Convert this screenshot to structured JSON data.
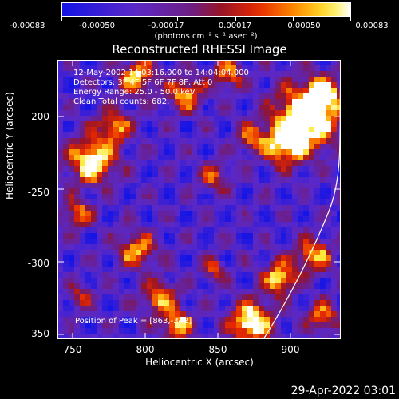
{
  "colorbar": {
    "labels": [
      "-0.00083",
      "-0.00050",
      "-0.00017",
      "0.00017",
      "0.00050",
      "0.00083"
    ],
    "units": "(photons cm⁻² s⁻¹ asec⁻²)",
    "range": [
      -0.00083,
      0.00083
    ]
  },
  "chart_data": {
    "type": "heatmap",
    "title": "Reconstructed RHESSI Image",
    "xlabel": "Heliocentric X (arcsec)",
    "ylabel": "Heliocentric Y (arcsec)",
    "xlim": [
      740,
      935
    ],
    "ylim": [
      -352,
      -162
    ],
    "xticks": [
      "750",
      "800",
      "850",
      "900"
    ],
    "yticks": [
      "-200",
      "-250",
      "-300",
      "-350"
    ],
    "annotations": {
      "line1": "12-May-2002 14:03:16.000 to 14:04:04.000",
      "line2": "Detectors: 3F 4F 5F 6F 7F 8F, Att 0",
      "line3": "Energy Range: 25.0 - 50.0 keV",
      "line4": "Clean    Total counts: 682.",
      "peak": "Position of Peak = [863,-342]"
    },
    "peak_position": [
      863,
      -342
    ],
    "limb": true
  },
  "footer": {
    "timestamp": "29-Apr-2022 03:01"
  }
}
